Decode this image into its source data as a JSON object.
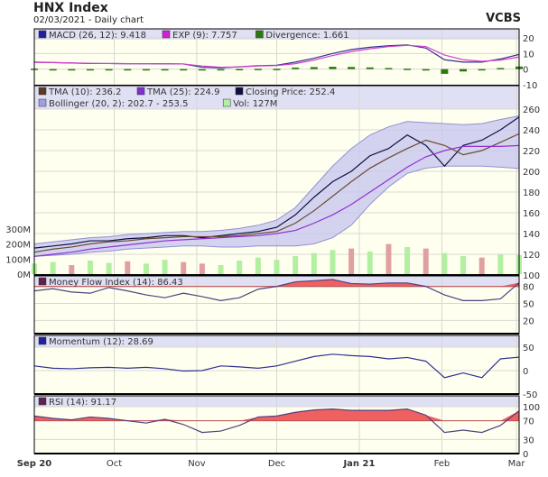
{
  "header": {
    "title": "HNX Index",
    "subtitle": "02/03/2021 - Daily chart",
    "brand": "VCBS"
  },
  "chart_data": {
    "type": "line",
    "x": [
      "2020-09-01",
      "2020-09-08",
      "2020-09-15",
      "2020-09-22",
      "2020-09-29",
      "2020-10-06",
      "2020-10-13",
      "2020-10-20",
      "2020-10-27",
      "2020-11-03",
      "2020-11-10",
      "2020-11-17",
      "2020-11-24",
      "2020-12-01",
      "2020-12-08",
      "2020-12-15",
      "2020-12-22",
      "2020-12-29",
      "2021-01-05",
      "2021-01-12",
      "2021-01-19",
      "2021-01-26",
      "2021-02-02",
      "2021-02-09",
      "2021-02-16",
      "2021-02-23",
      "2021-03-02"
    ],
    "x_ticks": [
      {
        "label": "Sep 20",
        "date": "2020-09-01",
        "bold": true
      },
      {
        "label": "Oct",
        "date": "2020-10-01"
      },
      {
        "label": "Nov",
        "date": "2020-11-01"
      },
      {
        "label": "Dec",
        "date": "2020-12-01"
      },
      {
        "label": "Jan 21",
        "date": "2021-01-01",
        "bold": true
      },
      {
        "label": "Feb",
        "date": "2021-02-01"
      },
      {
        "label": "Mar",
        "date": "2021-03-01"
      }
    ],
    "panels": [
      {
        "id": "macd",
        "ylim": [
          -10,
          25
        ],
        "ticks": [
          20,
          10,
          0,
          -10
        ],
        "legend": [
          {
            "label": "MACD (26, 12): 9.418",
            "color": "#2020a0"
          },
          {
            "label": "EXP (9): 7.757",
            "color": "#d020d0"
          },
          {
            "label": "Divergence: 1.661",
            "color": "#2a7a10"
          }
        ],
        "series": [
          {
            "name": "MACD (26, 12)",
            "color": "#303090",
            "values": [
              4.5,
              4.2,
              3.9,
              3.6,
              3.6,
              3.5,
              3.5,
              3.4,
              3.3,
              1.2,
              0.8,
              1.5,
              2.2,
              2.5,
              4.5,
              7,
              10,
              12.5,
              14,
              15,
              15.5,
              13.5,
              6,
              4.5,
              4.5,
              6.5,
              9.4
            ]
          },
          {
            "name": "EXP (9)",
            "color": "#d040d0",
            "values": [
              4.3,
              4.2,
              4,
              3.7,
              3.6,
              3.5,
              3.5,
              3.4,
              3.3,
              2,
              1.2,
              1.4,
              2,
              2.3,
              3.5,
              5.8,
              8.7,
              11.2,
              13,
              14.4,
              15.2,
              14.5,
              9,
              6,
              5,
              5.8,
              7.757
            ]
          },
          {
            "name": "Divergence",
            "color": "#2a7a10",
            "type": "bar",
            "values": [
              0.3,
              0,
              -0.1,
              -0.1,
              0,
              0,
              0,
              0,
              0,
              -0.8,
              -0.4,
              0.1,
              0.2,
              0.2,
              1,
              1.3,
              1.5,
              1.4,
              1.1,
              0.7,
              0.3,
              -0.9,
              -3,
              -1.5,
              -0.5,
              0.7,
              1.661
            ]
          }
        ]
      },
      {
        "id": "price",
        "ylim": [
          100,
          268
        ],
        "ticks": [
          260,
          240,
          220,
          200,
          180,
          160,
          140,
          120,
          100
        ],
        "legend": [
          {
            "label": "TMA (10): 236.2",
            "color": "#5a3a20"
          },
          {
            "label": "TMA (25): 224.9",
            "color": "#8030d0"
          },
          {
            "label": "Closing Price: 252.4",
            "color": "#101040"
          },
          {
            "label": "Bollinger (20, 2): 202.7 - 253.5",
            "color": "#a0a0e0"
          },
          {
            "label": "Vol: 127M",
            "color": "#b0f0a0"
          }
        ],
        "bollinger_upper": [
          130,
          132,
          134,
          136,
          137,
          139,
          140,
          141,
          142,
          142,
          143,
          145,
          148,
          153,
          165,
          185,
          205,
          222,
          235,
          243,
          248,
          247,
          246,
          245,
          246,
          250,
          253.5
        ],
        "bollinger_lower": [
          118,
          119,
          120,
          122,
          123,
          125,
          126,
          127,
          128,
          128,
          127,
          127,
          128,
          128,
          128,
          130,
          136,
          148,
          168,
          185,
          198,
          203,
          205,
          205,
          205,
          204,
          202.7
        ],
        "series": [
          {
            "name": "Closing Price",
            "color": "#101040",
            "values": [
              126,
              128,
              130,
              133,
              133,
              135,
              136,
              138,
              138,
              136,
              138,
              140,
              142,
              146,
              158,
              175,
              190,
              200,
              215,
              222,
              235,
              225,
              205,
              225,
              230,
              240,
              252.4
            ]
          },
          {
            "name": "TMA (10)",
            "color": "#6a4a30",
            "values": [
              122,
              125,
              127,
              130,
              132,
              133,
              135,
              136,
              137,
              137,
              137,
              138,
              140,
              142,
              150,
              162,
              176,
              190,
              203,
              213,
              222,
              230,
              225,
              216,
              220,
              228,
              236.2
            ]
          },
          {
            "name": "TMA (25)",
            "color": "#9030d0",
            "values": [
              118,
              120,
              122,
              125,
              127,
              129,
              131,
              133,
              134,
              135,
              136,
              137,
              138,
              140,
              143,
              150,
              158,
              168,
              180,
              192,
              204,
              214,
              220,
              224,
              224,
              224,
              224.9
            ]
          }
        ],
        "volume": {
          "unit": "M",
          "ylim": [
            0,
            300
          ],
          "ticks": [
            "300M",
            "200M",
            "100M",
            "0M"
          ],
          "up_color": "#b0f0a0",
          "down_color": "#e0a0a0",
          "values": [
            70,
            80,
            60,
            90,
            75,
            85,
            70,
            95,
            80,
            70,
            60,
            90,
            110,
            95,
            120,
            140,
            160,
            170,
            150,
            200,
            180,
            170,
            140,
            120,
            110,
            130,
            127
          ],
          "up": [
            true,
            true,
            false,
            true,
            true,
            false,
            true,
            true,
            false,
            false,
            true,
            true,
            true,
            true,
            true,
            true,
            true,
            false,
            true,
            false,
            true,
            false,
            true,
            true,
            false,
            true,
            true
          ]
        }
      },
      {
        "id": "mfi",
        "ylim": [
          0,
          100
        ],
        "ticks": [
          80,
          50,
          20
        ],
        "threshold": 80,
        "legend": [
          {
            "label": "Money Flow Index (14): 86.43",
            "color": "#602050"
          }
        ],
        "series": [
          {
            "name": "Money Flow Index (14)",
            "color": "#504080",
            "values": [
              72,
              76,
              70,
              68,
              78,
              72,
              65,
              60,
              68,
              62,
              55,
              60,
              75,
              80,
              88,
              90,
              92,
              85,
              84,
              86,
              86,
              80,
              65,
              55,
              55,
              58,
              86.43
            ]
          }
        ]
      },
      {
        "id": "momentum",
        "ylim": [
          -50,
          50
        ],
        "ticks": [
          50,
          0,
          -50
        ],
        "legend": [
          {
            "label": "Momentum (12): 28.69",
            "color": "#2020a0"
          }
        ],
        "series": [
          {
            "name": "Momentum (12)",
            "color": "#303090",
            "values": [
              10,
              5,
              4,
              6,
              7,
              5,
              7,
              4,
              -1,
              0,
              10,
              8,
              5,
              10,
              20,
              30,
              35,
              32,
              30,
              25,
              28,
              20,
              -15,
              -5,
              -15,
              25,
              28.69
            ]
          }
        ]
      },
      {
        "id": "rsi",
        "ylim": [
          0,
          100
        ],
        "ticks": [
          100,
          70,
          30,
          0
        ],
        "threshold": 70,
        "legend": [
          {
            "label": "RSI (14): 91.17",
            "color": "#602050"
          }
        ],
        "series": [
          {
            "name": "RSI (14)",
            "color": "#504080",
            "values": [
              80,
              75,
              72,
              78,
              75,
              70,
              65,
              73,
              62,
              45,
              48,
              60,
              78,
              80,
              88,
              93,
              95,
              92,
              92,
              92,
              95,
              82,
              45,
              50,
              45,
              60,
              91.17
            ]
          }
        ]
      }
    ],
    "colors": {
      "plot_bg": "#fffff0",
      "legend_bg": "#e0e0f4",
      "grid": "#d8d8d0",
      "overbought_fill": "#f06060"
    }
  }
}
